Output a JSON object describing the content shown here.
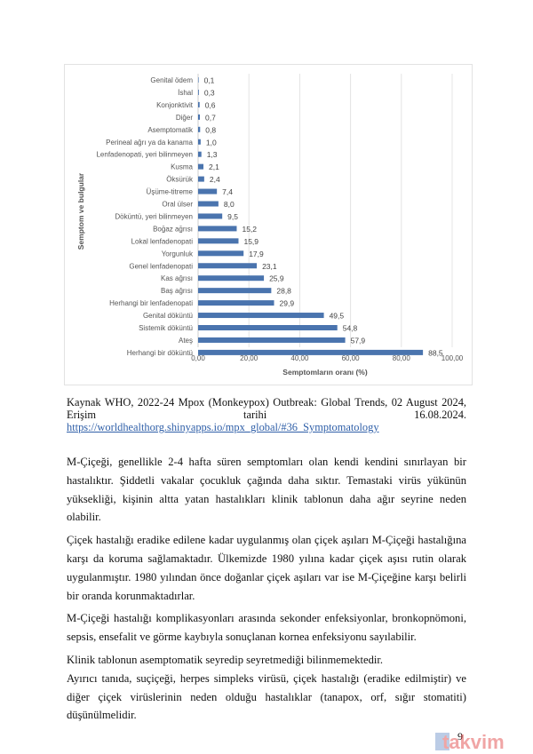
{
  "chart_data": {
    "type": "bar",
    "orientation": "horizontal",
    "categories": [
      "Genital ödem",
      "İshal",
      "Konjonktivit",
      "Diğer",
      "Asemptomatik",
      "Perineal ağrı ya da kanama",
      "Lenfadenopati, yeri bilinmeyen",
      "Kusma",
      "Öksürük",
      "Üşüme-titreme",
      "Oral ülser",
      "Döküntü, yeri bilinmeyen",
      "Boğaz ağrısı",
      "Lokal lenfadenopati",
      "Yorgunluk",
      "Genel lenfadenopati",
      "Kas ağrısı",
      "Baş ağrısı",
      "Herhangi bir lenfadenopati",
      "Genital döküntü",
      "Sistemik döküntü",
      "Ateş",
      "Herhangi bir döküntü"
    ],
    "values": [
      0.1,
      0.3,
      0.6,
      0.7,
      0.8,
      1.0,
      1.3,
      2.1,
      2.4,
      7.4,
      8.0,
      9.5,
      15.2,
      15.9,
      17.9,
      23.1,
      25.9,
      28.8,
      29.9,
      49.5,
      54.8,
      57.9,
      88.5
    ],
    "data_labels": [
      "0,1",
      "0,3",
      "0,6",
      "0,7",
      "0,8",
      "1,0",
      "1,3",
      "2,1",
      "2,4",
      "7,4",
      "8,0",
      "9,5",
      "15,2",
      "15,9",
      "17,9",
      "23,1",
      "25,9",
      "28,8",
      "29,9",
      "49,5",
      "54,8",
      "57,9",
      "88,5"
    ],
    "xlabel": "Semptomların oranı (%)",
    "ylabel": "Semptom ve bulgular",
    "xlim": [
      0,
      100
    ],
    "xticks": [
      0,
      20,
      40,
      60,
      80,
      100
    ],
    "xtick_labels": [
      "0,00",
      "20,00",
      "40,00",
      "60,00",
      "80,00",
      "100,00"
    ],
    "grid": "vertical",
    "bar_color": "#4a74ae"
  },
  "caption": {
    "text": "Kaynak WHO, 2022-24 Mpox (Monkeypox) Outbreak: Global Trends, 02 August 2024, Erişim tarihi 16.08.2024. ",
    "link": "https://worldhealthorg.shinyapps.io/mpx_global/#36_Symptomatology"
  },
  "paragraphs": [
    "M-Çiçeği, genellikle 2-4 hafta süren semptomları olan kendi kendini sınırlayan bir hastalıktır. Şiddetli vakalar çocukluk çağında daha sıktır. Temastaki virüs yükünün yüksekliği, kişinin altta yatan hastalıkları klinik tablonun daha ağır seyrine neden olabilir.",
    "Çiçek hastalığı eradike edilene kadar uygulanmış olan çiçek aşıları M-Çiçeği hastalığına karşı da koruma sağlamaktadır. Ülkemizde 1980 yılına kadar çiçek aşısı rutin olarak uygulanmıştır. 1980 yılından önce doğanlar çiçek aşıları var ise M-Çiçeğine karşı belirli bir oranda korunmaktadırlar.",
    "M-Çiçeği hastalığı komplikasyonları arasında sekonder enfeksiyonlar, bronkopnömoni, sepsis, ensefalit ve görme kaybıyla sonuçlanan kornea enfeksiyonu sayılabilir.",
    "Klinik tablonun asemptomatik seyredip seyretmediği bilinmemektedir.",
    "Ayırıcı tanıda, suçiçeği, herpes simpleks virüsü, çiçek hastalığı (eradike edilmiştir) ve diğer çiçek virüslerinin neden olduğu hastalıklar (tanapox, orf, sığır stomatiti) düşünülmelidir."
  ],
  "page_number": "9",
  "watermark": "takvim"
}
